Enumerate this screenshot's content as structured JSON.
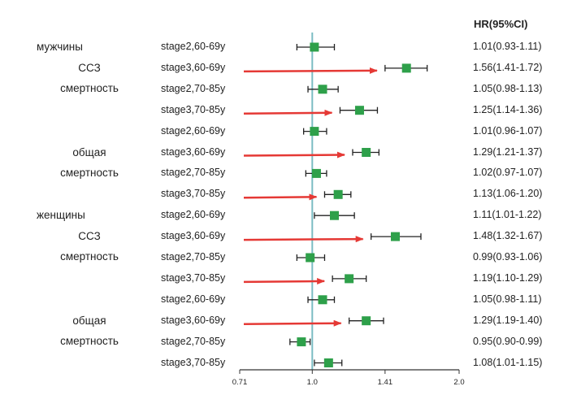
{
  "chart_data": {
    "type": "forest",
    "hr_header": "HR(95%CI)",
    "groups": [
      {
        "label": "мужчины",
        "row": 0
      },
      {
        "label": "ССЗ\nсмертность",
        "row": 1
      },
      {
        "label": "общая\nсмертность",
        "row": 5
      },
      {
        "label": "женщины",
        "row": 8
      },
      {
        "label": "ССЗ\nсмертность",
        "row": 9
      },
      {
        "label": "общая\nсмертность",
        "row": 13
      }
    ],
    "rows": [
      {
        "label": "stage2,60-69y",
        "hr": 1.01,
        "lo": 0.93,
        "hi": 1.11,
        "text": "1.01(0.93-1.11)",
        "arrow": false
      },
      {
        "label": "stage3,60-69y",
        "hr": 1.56,
        "lo": 1.41,
        "hi": 1.72,
        "text": "1.56(1.41-1.72)",
        "arrow": true
      },
      {
        "label": "stage2,70-85y",
        "hr": 1.05,
        "lo": 0.98,
        "hi": 1.13,
        "text": "1.05(0.98-1.13)",
        "arrow": false
      },
      {
        "label": "stage3,70-85y",
        "hr": 1.25,
        "lo": 1.14,
        "hi": 1.36,
        "text": "1.25(1.14-1.36)",
        "arrow": true
      },
      {
        "label": "stage2,60-69y",
        "hr": 1.01,
        "lo": 0.96,
        "hi": 1.07,
        "text": "1.01(0.96-1.07)",
        "arrow": false
      },
      {
        "label": "stage3,60-69y",
        "hr": 1.29,
        "lo": 1.21,
        "hi": 1.37,
        "text": "1.29(1.21-1.37)",
        "arrow": true
      },
      {
        "label": "stage2,70-85y",
        "hr": 1.02,
        "lo": 0.97,
        "hi": 1.07,
        "text": "1.02(0.97-1.07)",
        "arrow": false
      },
      {
        "label": "stage3,70-85y",
        "hr": 1.13,
        "lo": 1.06,
        "hi": 1.2,
        "text": "1.13(1.06-1.20)",
        "arrow": true
      },
      {
        "label": "stage2,60-69y",
        "hr": 1.11,
        "lo": 1.01,
        "hi": 1.22,
        "text": "1.11(1.01-1.22)",
        "arrow": false
      },
      {
        "label": "stage3,60-69y",
        "hr": 1.48,
        "lo": 1.32,
        "hi": 1.67,
        "text": "1.48(1.32-1.67)",
        "arrow": true
      },
      {
        "label": "stage2,70-85y",
        "hr": 0.99,
        "lo": 0.93,
        "hi": 1.06,
        "text": "0.99(0.93-1.06)",
        "arrow": false
      },
      {
        "label": "stage3,70-85y",
        "hr": 1.19,
        "lo": 1.1,
        "hi": 1.29,
        "text": "1.19(1.10-1.29)",
        "arrow": true
      },
      {
        "label": "stage2,60-69y",
        "hr": 1.05,
        "lo": 0.98,
        "hi": 1.11,
        "text": "1.05(0.98-1.11)",
        "arrow": false
      },
      {
        "label": "stage3,60-69y",
        "hr": 1.29,
        "lo": 1.19,
        "hi": 1.4,
        "text": "1.29(1.19-1.40)",
        "arrow": true
      },
      {
        "label": "stage2,70-85y",
        "hr": 0.95,
        "lo": 0.9,
        "hi": 0.99,
        "text": "0.95(0.90-0.99)",
        "arrow": false
      },
      {
        "label": "stage3,70-85y",
        "hr": 1.08,
        "lo": 1.01,
        "hi": 1.15,
        "text": "1.08(1.01-1.15)",
        "arrow": false
      }
    ],
    "x_ticks": [
      "0.71",
      "1.0",
      "1.41",
      "2.0"
    ],
    "x_tick_values": [
      0.71,
      1.0,
      1.41,
      2.0
    ],
    "xlim": [
      0.71,
      2.0
    ],
    "x_scale": "log",
    "reference_line": 1.0,
    "colors": {
      "marker": "#2ea04a",
      "arrow": "#e53935",
      "reference": "#7bbcc3",
      "axis": "#333333"
    }
  }
}
